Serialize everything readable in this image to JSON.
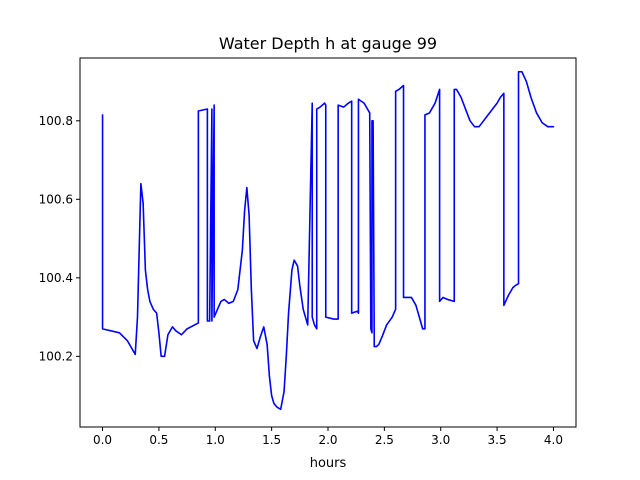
{
  "chart_data": {
    "type": "line",
    "title": "Water Depth h at gauge 99",
    "xlabel": "hours",
    "ylabel": "",
    "xlim": [
      -0.2,
      4.2
    ],
    "ylim": [
      100.02,
      100.96
    ],
    "xticks": [
      0.0,
      0.5,
      1.0,
      1.5,
      2.0,
      2.5,
      3.0,
      3.5,
      4.0
    ],
    "xtick_labels": [
      "0.0",
      "0.5",
      "1.0",
      "1.5",
      "2.0",
      "2.5",
      "3.0",
      "3.5",
      "4.0"
    ],
    "yticks": [
      100.2,
      100.4,
      100.6,
      100.8
    ],
    "ytick_labels": [
      "100.2",
      "100.4",
      "100.6",
      "100.8"
    ],
    "grid": false,
    "series": [
      {
        "color": "#0000ff",
        "x": [
          0.0,
          0.0,
          0.15,
          0.22,
          0.29,
          0.31,
          0.34,
          0.36,
          0.38,
          0.4,
          0.42,
          0.45,
          0.48,
          0.5,
          0.52,
          0.55,
          0.58,
          0.62,
          0.65,
          0.7,
          0.75,
          0.85,
          0.85,
          0.93,
          0.93,
          0.95,
          0.97,
          0.97,
          0.99,
          0.99,
          1.02,
          1.05,
          1.08,
          1.12,
          1.16,
          1.2,
          1.24,
          1.26,
          1.28,
          1.3,
          1.32,
          1.34,
          1.37,
          1.4,
          1.43,
          1.46,
          1.48,
          1.5,
          1.52,
          1.55,
          1.58,
          1.61,
          1.63,
          1.65,
          1.68,
          1.7,
          1.73,
          1.75,
          1.78,
          1.82,
          1.86,
          1.86,
          1.88,
          1.9,
          1.9,
          1.93,
          1.97,
          1.98,
          1.98,
          2.05,
          2.09,
          2.09,
          2.14,
          2.18,
          2.21,
          2.21,
          2.26,
          2.27,
          2.27,
          2.32,
          2.37,
          2.38,
          2.39,
          2.39,
          2.4,
          2.41,
          2.41,
          2.43,
          2.45,
          2.48,
          2.52,
          2.57,
          2.6,
          2.6,
          2.63,
          2.67,
          2.67,
          2.7,
          2.74,
          2.78,
          2.82,
          2.84,
          2.86,
          2.86,
          2.9,
          2.95,
          2.99,
          2.99,
          3.02,
          3.06,
          3.12,
          3.12,
          3.14,
          3.18,
          3.22,
          3.26,
          3.3,
          3.34,
          3.38,
          3.42,
          3.46,
          3.5,
          3.53,
          3.56,
          3.56,
          3.6,
          3.64,
          3.66,
          3.69,
          3.69,
          3.72,
          3.76,
          3.8,
          3.85,
          3.9,
          3.95,
          4.0
        ],
        "y": [
          100.815,
          100.27,
          100.26,
          100.24,
          100.205,
          100.3,
          100.64,
          100.59,
          100.42,
          100.37,
          100.34,
          100.32,
          100.31,
          100.26,
          100.2,
          100.2,
          100.255,
          100.275,
          100.265,
          100.255,
          100.27,
          100.285,
          100.825,
          100.83,
          100.29,
          100.29,
          100.83,
          100.29,
          100.84,
          100.3,
          100.32,
          100.34,
          100.345,
          100.335,
          100.34,
          100.37,
          100.47,
          100.57,
          100.63,
          100.56,
          100.37,
          100.24,
          100.22,
          100.25,
          100.275,
          100.23,
          100.15,
          100.1,
          100.08,
          100.07,
          100.065,
          100.11,
          100.2,
          100.31,
          100.42,
          100.445,
          100.43,
          100.38,
          100.32,
          100.28,
          100.845,
          100.3,
          100.28,
          100.27,
          100.83,
          100.835,
          100.845,
          100.84,
          100.3,
          100.295,
          100.295,
          100.84,
          100.835,
          100.845,
          100.85,
          100.31,
          100.315,
          100.31,
          100.855,
          100.845,
          100.82,
          100.27,
          100.26,
          100.8,
          100.8,
          100.25,
          100.225,
          100.225,
          100.23,
          100.25,
          100.28,
          100.3,
          100.32,
          100.875,
          100.88,
          100.89,
          100.35,
          100.35,
          100.35,
          100.33,
          100.29,
          100.27,
          100.27,
          100.815,
          100.82,
          100.845,
          100.88,
          100.34,
          100.35,
          100.345,
          100.34,
          100.88,
          100.88,
          100.86,
          100.83,
          100.8,
          100.785,
          100.785,
          100.8,
          100.815,
          100.83,
          100.845,
          100.86,
          100.87,
          100.33,
          100.355,
          100.375,
          100.38,
          100.385,
          100.925,
          100.925,
          100.9,
          100.86,
          100.82,
          100.795,
          100.785,
          100.785
        ]
      }
    ]
  }
}
